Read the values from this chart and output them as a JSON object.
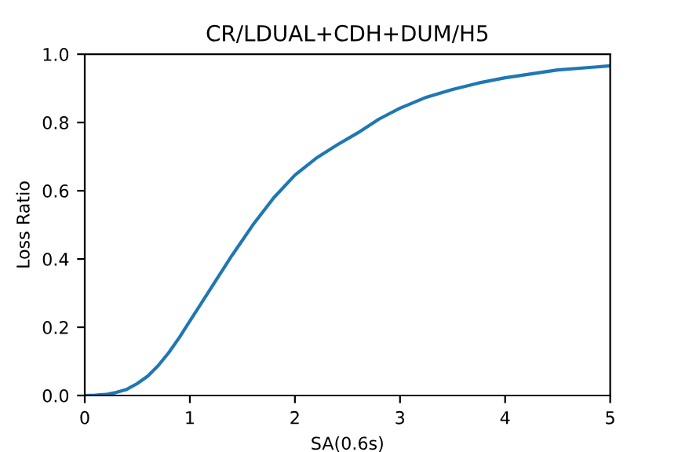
{
  "chart_data": {
    "type": "line",
    "title": "CR/LDUAL+CDH+DUM/H5",
    "xlabel": "SA(0.6s)",
    "ylabel": "Loss Ratio",
    "xlim": [
      0,
      5
    ],
    "ylim": [
      0,
      1.0
    ],
    "xticks": [
      0,
      1,
      2,
      3,
      4,
      5
    ],
    "yticks": [
      {
        "value": 0,
        "label": "0.0"
      },
      {
        "value": 0.2,
        "label": "0.2"
      },
      {
        "value": 0.4,
        "label": "0.4"
      },
      {
        "value": 0.6,
        "label": "0.6"
      },
      {
        "value": 0.8,
        "label": "0.8"
      },
      {
        "value": 1.0,
        "label": "1.0"
      }
    ],
    "grid": false,
    "legend": false,
    "series": [
      {
        "color": "#1f77b4",
        "x": [
          0,
          0.1,
          0.2,
          0.3,
          0.4,
          0.5,
          0.6,
          0.7,
          0.8,
          0.9,
          1.0,
          1.2,
          1.4,
          1.6,
          1.8,
          2.0,
          2.2,
          2.4,
          2.6,
          2.8,
          3.0,
          3.25,
          3.5,
          3.75,
          4.0,
          4.5,
          5.0
        ],
        "values": [
          0,
          0.001,
          0.003,
          0.009,
          0.018,
          0.035,
          0.057,
          0.088,
          0.126,
          0.17,
          0.218,
          0.314,
          0.41,
          0.5,
          0.58,
          0.646,
          0.695,
          0.734,
          0.77,
          0.81,
          0.842,
          0.874,
          0.897,
          0.916,
          0.931,
          0.954,
          0.966
        ]
      }
    ]
  }
}
